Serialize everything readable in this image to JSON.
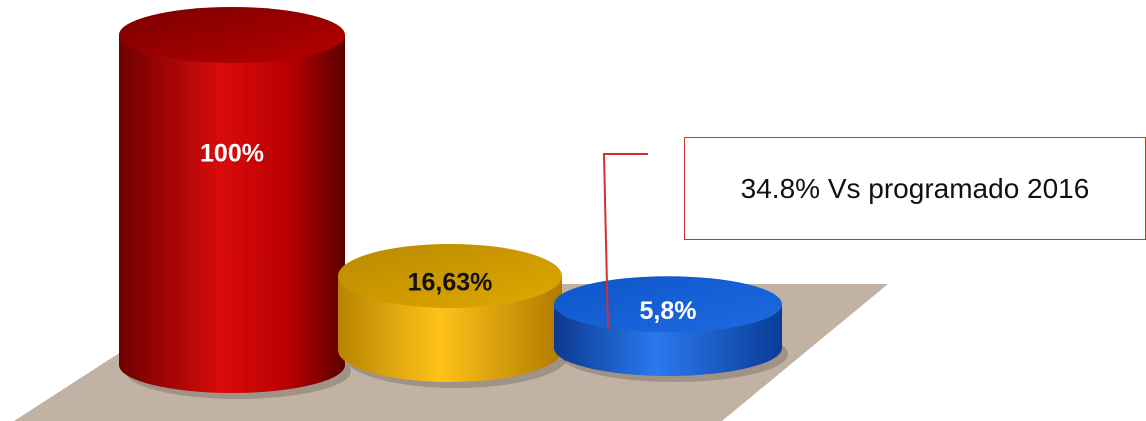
{
  "chart_data": {
    "type": "bar",
    "categories": [
      "",
      "",
      ""
    ],
    "values": [
      100,
      16.63,
      5.8
    ],
    "data_labels": [
      "100%",
      "16,63%",
      "5,8%"
    ],
    "colors": [
      "#c00000",
      "#f2b705",
      "#1560d4"
    ],
    "label_colors": [
      "#ffffff",
      "#111111",
      "#ffffff"
    ],
    "floor_color": "#c2b2a4",
    "title": "",
    "xlabel": "",
    "ylabel": "",
    "ylim": [
      0,
      100
    ],
    "grid": false,
    "legend": "none",
    "annotation": {
      "text": "34.8% Vs programado 2016",
      "points_to_bar": 2,
      "border_color": "#d32f2f"
    }
  }
}
